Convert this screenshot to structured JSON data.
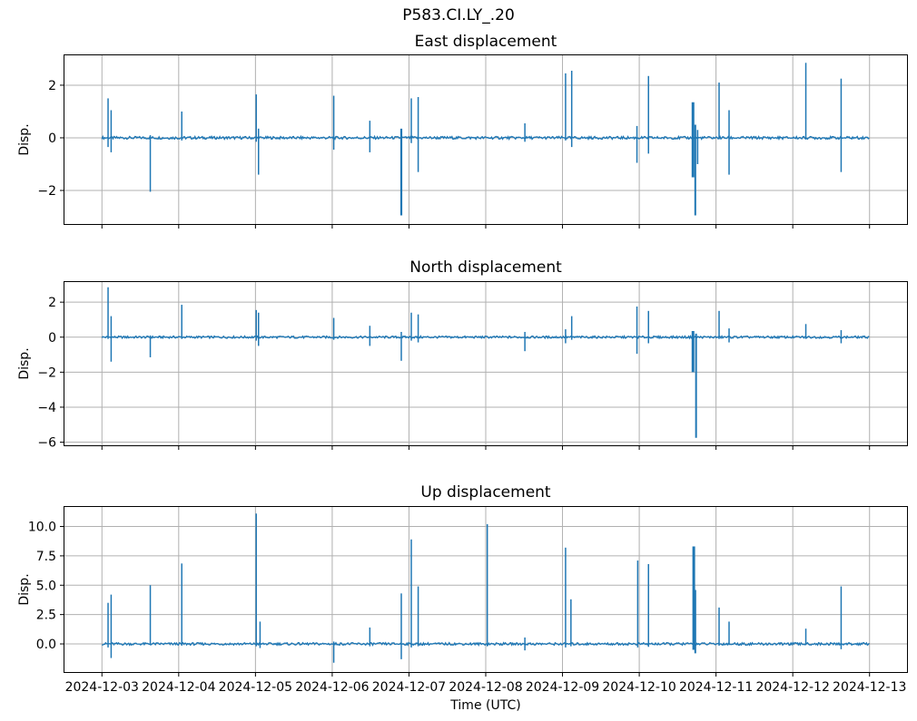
{
  "figure": {
    "title": "P583.CI.LY_.20",
    "xlabel": "Time (UTC)",
    "colors": {
      "line": "#1f77b4",
      "grid": "#b0b0b0",
      "spine": "#000000",
      "text": "#000000",
      "background": "#ffffff"
    }
  },
  "chart_data": [
    {
      "type": "line",
      "title": "East displacement",
      "ylabel": "Disp.",
      "grid": true,
      "ylim": [
        -3.31,
        3.17
      ],
      "yticks": [
        2,
        0,
        -2
      ],
      "ytick_labels": [
        "2",
        "0",
        "−2"
      ],
      "xlim_days": [
        -0.5,
        10.5
      ],
      "xticks_days": [
        0,
        1,
        2,
        3,
        4,
        5,
        6,
        7,
        8,
        9,
        10
      ],
      "show_xtick_labels": false,
      "baseline": {
        "t_start": 0,
        "t_end": 10,
        "value": 0,
        "noise_amp": 0.05
      },
      "spikes_t_min_max": [
        [
          0.08,
          -0.35,
          1.5
        ],
        [
          0.12,
          -0.55,
          1.05
        ],
        [
          0.63,
          -2.05,
          0.1
        ],
        [
          1.04,
          -0.1,
          1.0
        ],
        [
          2.01,
          -0.15,
          1.65
        ],
        [
          2.04,
          -1.4,
          0.35
        ],
        [
          3.02,
          -0.45,
          1.6
        ],
        [
          3.49,
          -0.55,
          0.65
        ],
        [
          3.9,
          -2.95,
          0.35,
          2.2
        ],
        [
          4.03,
          -0.2,
          1.5
        ],
        [
          4.12,
          -1.3,
          1.55
        ],
        [
          5.51,
          -0.15,
          0.55
        ],
        [
          6.04,
          -0.1,
          2.45
        ],
        [
          6.12,
          -0.35,
          2.55
        ],
        [
          6.97,
          -0.95,
          0.45
        ],
        [
          7.12,
          -0.6,
          2.35
        ],
        [
          7.7,
          -1.5,
          1.35,
          3
        ],
        [
          7.73,
          -2.95,
          0.5,
          2
        ],
        [
          7.76,
          -1.0,
          0.3,
          1.6
        ],
        [
          8.04,
          -0.05,
          2.1
        ],
        [
          8.17,
          -1.4,
          1.05
        ],
        [
          9.17,
          -0.05,
          2.85
        ],
        [
          9.63,
          -1.3,
          2.25
        ]
      ]
    },
    {
      "type": "line",
      "title": "North displacement",
      "ylabel": "Disp.",
      "grid": true,
      "ylim": [
        -6.23,
        3.2
      ],
      "yticks": [
        2,
        0,
        -2,
        -4,
        -6
      ],
      "ytick_labels": [
        "2",
        "0",
        "−2",
        "−4",
        "−6"
      ],
      "xlim_days": [
        -0.5,
        10.5
      ],
      "xticks_days": [
        0,
        1,
        2,
        3,
        4,
        5,
        6,
        7,
        8,
        9,
        10
      ],
      "show_xtick_labels": false,
      "baseline": {
        "t_start": 0,
        "t_end": 10,
        "value": 0,
        "noise_amp": 0.06
      },
      "spikes_t_min_max": [
        [
          0.08,
          -0.1,
          2.85
        ],
        [
          0.12,
          -1.4,
          1.2
        ],
        [
          0.63,
          -1.15,
          0.1
        ],
        [
          1.04,
          -0.1,
          1.85
        ],
        [
          2.01,
          -0.2,
          1.55
        ],
        [
          2.04,
          -0.5,
          1.4
        ],
        [
          3.02,
          -0.15,
          1.1
        ],
        [
          3.49,
          -0.5,
          0.65
        ],
        [
          3.9,
          -1.35,
          0.3
        ],
        [
          4.03,
          -0.2,
          1.4
        ],
        [
          4.12,
          -0.3,
          1.3
        ],
        [
          5.51,
          -0.8,
          0.3
        ],
        [
          6.04,
          -0.35,
          0.45
        ],
        [
          6.12,
          -0.15,
          1.2
        ],
        [
          6.97,
          -0.95,
          1.75
        ],
        [
          7.12,
          -0.35,
          1.5
        ],
        [
          7.7,
          -2.0,
          0.35,
          3
        ],
        [
          7.74,
          -5.75,
          0.2,
          2
        ],
        [
          8.04,
          -0.1,
          1.5
        ],
        [
          8.17,
          -0.3,
          0.5
        ],
        [
          9.17,
          -0.1,
          0.75
        ],
        [
          9.63,
          -0.35,
          0.4
        ]
      ]
    },
    {
      "type": "line",
      "title": "Up displacement",
      "ylabel": "Disp.",
      "xlabel": "Time (UTC)",
      "grid": true,
      "ylim": [
        -2.47,
        11.74
      ],
      "yticks": [
        10,
        7.5,
        5,
        2.5,
        0
      ],
      "ytick_labels": [
        "10.0",
        "7.5",
        "5.0",
        "2.5",
        "0.0"
      ],
      "xlim_days": [
        -0.5,
        10.5
      ],
      "xticks_days": [
        0,
        1,
        2,
        3,
        4,
        5,
        6,
        7,
        8,
        9,
        10
      ],
      "show_xtick_labels": true,
      "xtick_labels": [
        "2024-12-03",
        "2024-12-04",
        "2024-12-05",
        "2024-12-06",
        "2024-12-07",
        "2024-12-08",
        "2024-12-09",
        "2024-12-10",
        "2024-12-11",
        "2024-12-12",
        "2024-12-13"
      ],
      "baseline": {
        "t_start": 0,
        "t_end": 10,
        "value": 0,
        "noise_amp": 0.1
      },
      "spikes_t_min_max": [
        [
          0.08,
          -0.3,
          3.5
        ],
        [
          0.12,
          -1.2,
          4.2
        ],
        [
          0.63,
          -0.1,
          5.0
        ],
        [
          1.04,
          -0.15,
          6.85
        ],
        [
          2.01,
          -0.2,
          11.1
        ],
        [
          2.06,
          -0.35,
          1.9
        ],
        [
          3.02,
          -1.6,
          0.2
        ],
        [
          3.49,
          -0.2,
          1.4
        ],
        [
          3.9,
          -1.3,
          4.3
        ],
        [
          4.03,
          -0.3,
          8.9
        ],
        [
          4.12,
          -0.2,
          4.9
        ],
        [
          5.02,
          -0.2,
          10.2
        ],
        [
          5.51,
          -0.55,
          0.55
        ],
        [
          6.04,
          -0.3,
          8.2
        ],
        [
          6.11,
          -0.2,
          3.8
        ],
        [
          6.98,
          -0.3,
          7.1
        ],
        [
          7.12,
          -0.25,
          6.8
        ],
        [
          7.71,
          -0.5,
          8.3,
          3
        ],
        [
          7.73,
          -0.8,
          4.6,
          2
        ],
        [
          8.04,
          -0.15,
          3.1
        ],
        [
          8.17,
          -0.1,
          1.9
        ],
        [
          9.17,
          -0.1,
          1.3
        ],
        [
          9.63,
          -0.45,
          4.9
        ]
      ]
    }
  ]
}
